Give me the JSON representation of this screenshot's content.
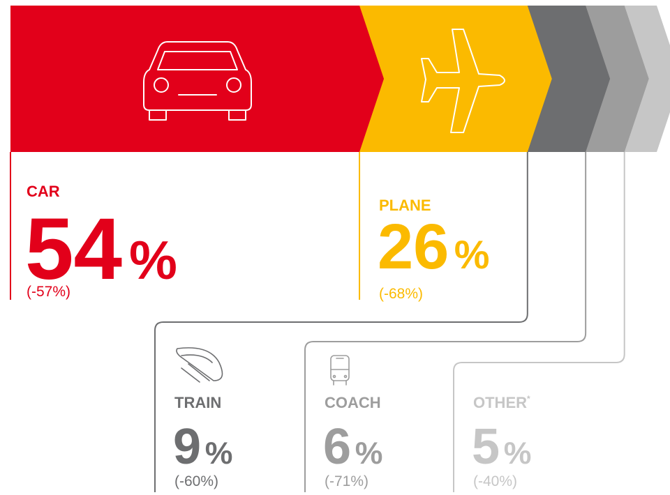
{
  "chart_data": {
    "type": "chevron-split",
    "categories": [
      "CAR",
      "PLANE",
      "TRAIN",
      "COACH",
      "OTHER"
    ],
    "values": [
      54,
      26,
      9,
      6,
      5
    ],
    "unit": "%",
    "changes": [
      "(-57%)",
      "(-68%)",
      "(-60%)",
      "(-71%)",
      "(-40%)"
    ],
    "other_mark": "*",
    "colors": [
      "#e2001a",
      "#fbba00",
      "#6d6e70",
      "#9d9d9d",
      "#c6c6c6"
    ]
  }
}
